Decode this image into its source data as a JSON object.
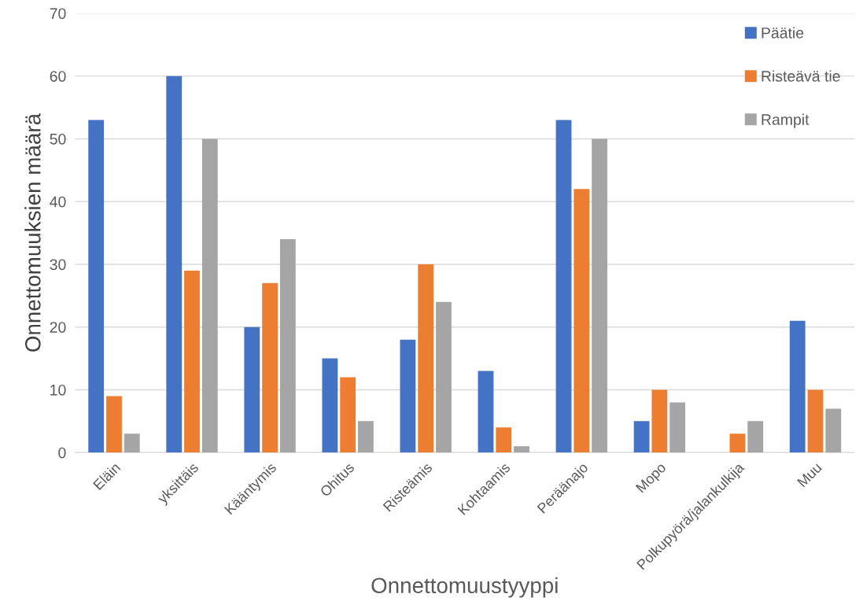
{
  "chart_data": {
    "type": "bar",
    "xlabel": "Onnettomuustyyppi",
    "ylabel": "Onnettomuuksien määrä",
    "categories": [
      "Eläin",
      "yksittäis",
      "Kääntymis",
      "Ohitus",
      "Risteämis",
      "Kohtaamis",
      "Peräänajo",
      "Mopo",
      "Polkupyörä/jalankulkija",
      "Muu"
    ],
    "series": [
      {
        "name": "Päätie",
        "color": "#4472c4",
        "values": [
          53,
          60,
          20,
          15,
          18,
          13,
          53,
          5,
          0,
          21
        ]
      },
      {
        "name": "Risteävä tie",
        "color": "#ed7d31",
        "values": [
          9,
          29,
          27,
          12,
          30,
          4,
          42,
          10,
          3,
          10
        ]
      },
      {
        "name": "Rampit",
        "color": "#a5a5a5",
        "values": [
          3,
          50,
          34,
          5,
          24,
          1,
          50,
          8,
          5,
          7
        ]
      }
    ],
    "ylim": [
      0,
      70
    ],
    "yticks": [
      0,
      10,
      20,
      30,
      40,
      50,
      60,
      70
    ],
    "grid": "y",
    "legend": "top right"
  }
}
